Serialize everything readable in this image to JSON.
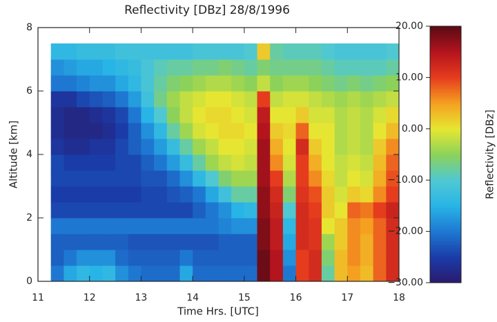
{
  "chart_data": {
    "type": "heatmap",
    "title": "Reflectivity [DBz] 28/8/1996",
    "x_label": "Time Hrs. [UTC]",
    "y_label": "Altitude [km]",
    "colorbar_label": "Reflectivity [DBz]",
    "x": [
      11.375,
      11.625,
      11.875,
      12.125,
      12.375,
      12.625,
      12.875,
      13.125,
      13.375,
      13.625,
      13.875,
      14.125,
      14.375,
      14.625,
      14.875,
      15.125,
      15.375,
      15.625,
      15.875,
      16.125,
      16.375,
      16.625,
      16.875,
      17.125,
      17.375,
      17.625,
      17.875
    ],
    "y": [
      0.25,
      0.75,
      1.25,
      1.75,
      2.25,
      2.75,
      3.25,
      3.75,
      4.25,
      4.75,
      5.25,
      5.75,
      6.25,
      6.75,
      7.25
    ],
    "z": [
      [
        -20,
        -22,
        -22,
        -20,
        -24,
        -25,
        -24,
        -24,
        -26,
        -27,
        -27,
        -26,
        -20,
        -18,
        -14
      ],
      [
        -16,
        -20,
        -22,
        -20,
        -24,
        -25,
        -24,
        -25,
        -27,
        -28,
        -28,
        -26,
        -20,
        -17,
        -14
      ],
      [
        -14,
        -18,
        -22,
        -20,
        -24,
        -25,
        -24,
        -25,
        -27,
        -28,
        -28,
        -24,
        -19,
        -16,
        -13
      ],
      [
        -15,
        -18,
        -22,
        -20,
        -24,
        -25,
        -24,
        -25,
        -26,
        -28,
        -27,
        -23,
        -18,
        -16,
        -13
      ],
      [
        -14,
        -18,
        -22,
        -20,
        -24,
        -25,
        -24,
        -25,
        -26,
        -27,
        -26,
        -22,
        -18,
        -15,
        -13
      ],
      [
        -18,
        -21,
        -22,
        -20,
        -24,
        -25,
        -24,
        -24,
        -24,
        -25,
        -24,
        -20,
        -16,
        -14,
        -12
      ],
      [
        -20,
        -22,
        -23,
        -20,
        -24,
        -25,
        -24,
        -24,
        -22,
        -22,
        -20,
        -17,
        -14,
        -13,
        -12
      ],
      [
        -21,
        -22,
        -23,
        -20,
        -24,
        -24,
        -23,
        -22,
        -20,
        -18,
        -15,
        -12,
        -11,
        -11,
        -12
      ],
      [
        -21,
        -22,
        -23,
        -20,
        -24,
        -24,
        -23,
        -20,
        -17,
        -14,
        -10,
        -7,
        -8,
        -9,
        -12
      ],
      [
        -21,
        -22,
        -23,
        -20,
        -24,
        -23,
        -21,
        -17,
        -13,
        -8,
        -5,
        -4,
        -6,
        -8,
        -12
      ],
      [
        -16,
        -20,
        -23,
        -20,
        -24,
        -22,
        -18,
        -13,
        -8,
        -4,
        -2,
        -2,
        -5,
        -8,
        -12
      ],
      [
        -21,
        -22,
        -23,
        -20,
        -22,
        -20,
        -14,
        -8,
        -4,
        -1,
        0,
        -1,
        -4,
        -7,
        -11
      ],
      [
        -21,
        -22,
        -23,
        -20,
        -20,
        -16,
        -10,
        -4,
        -2,
        0,
        1,
        0,
        -3,
        -7,
        -11
      ],
      [
        -21,
        -22,
        -22,
        -19,
        -18,
        -12,
        -6,
        -2,
        0,
        1,
        1,
        0,
        -3,
        -6,
        -11
      ],
      [
        -21,
        -22,
        -22,
        -18,
        -15,
        -8,
        -4,
        -1,
        0,
        1,
        0,
        -1,
        -4,
        -7,
        -11
      ],
      [
        -21,
        -22,
        -22,
        -18,
        -14,
        -8,
        -4,
        -2,
        -1,
        0,
        -1,
        -2,
        -5,
        -8,
        -10
      ],
      [
        19,
        19,
        18,
        18,
        17,
        17,
        16,
        16,
        16,
        15,
        14,
        10,
        -2,
        -6,
        2
      ],
      [
        15,
        15,
        14,
        14,
        13,
        12,
        10,
        6,
        4,
        2,
        0,
        -2,
        -5,
        -7,
        -8
      ],
      [
        -20,
        -18,
        -16,
        -14,
        -10,
        -6,
        -3,
        -1,
        0,
        1,
        0,
        -1,
        -4,
        -7,
        -9
      ],
      [
        10,
        10,
        12,
        12,
        12,
        11,
        10,
        10,
        12,
        8,
        2,
        -1,
        -4,
        -7,
        -9
      ],
      [
        12,
        12,
        11,
        11,
        10,
        9,
        6,
        4,
        2,
        0,
        -1,
        -2,
        -5,
        -7,
        -9
      ],
      [
        -8,
        -6,
        -4,
        0,
        2,
        2,
        1,
        0,
        0,
        0,
        -1,
        -3,
        -6,
        -8,
        -10
      ],
      [
        3,
        3,
        2,
        2,
        0,
        -1,
        -2,
        -2,
        -3,
        -3,
        -3,
        -4,
        -7,
        -9,
        -11
      ],
      [
        5,
        6,
        6,
        6,
        8,
        2,
        0,
        -1,
        -2,
        -2,
        -2,
        -3,
        -6,
        -9,
        -11
      ],
      [
        3,
        4,
        4,
        5,
        7,
        1,
        -1,
        -2,
        -3,
        -3,
        -3,
        -4,
        -7,
        -9,
        -11
      ],
      [
        8,
        8,
        8,
        8,
        10,
        6,
        4,
        3,
        2,
        0,
        -1,
        -3,
        -6,
        -9,
        -11
      ],
      [
        12,
        12,
        12,
        12,
        13,
        10,
        9,
        8,
        6,
        3,
        1,
        -2,
        -5,
        -8,
        -10
      ]
    ],
    "xlim": [
      11,
      18
    ],
    "ylim": [
      0,
      8
    ],
    "zlim": [
      -30,
      20
    ],
    "xticks": [
      11,
      12,
      13,
      14,
      15,
      16,
      17,
      18
    ],
    "yticks": [
      0,
      2,
      4,
      6,
      8
    ],
    "zticks": [
      {
        "value": 20,
        "label": "20.00"
      },
      {
        "value": 10,
        "label": "10.00"
      },
      {
        "value": 0,
        "label": "0.00"
      },
      {
        "value": -10,
        "label": "−10.00"
      },
      {
        "value": -20,
        "label": "−20.00"
      },
      {
        "value": -30,
        "label": "−30.00"
      }
    ],
    "colorscale": [
      "#2a1a6e",
      "#1a3ca8",
      "#1e78d2",
      "#28b4e6",
      "#50c8d2",
      "#8cd25a",
      "#e6e632",
      "#f5a020",
      "#e63c1e",
      "#b4141e",
      "#5a0a14"
    ]
  }
}
